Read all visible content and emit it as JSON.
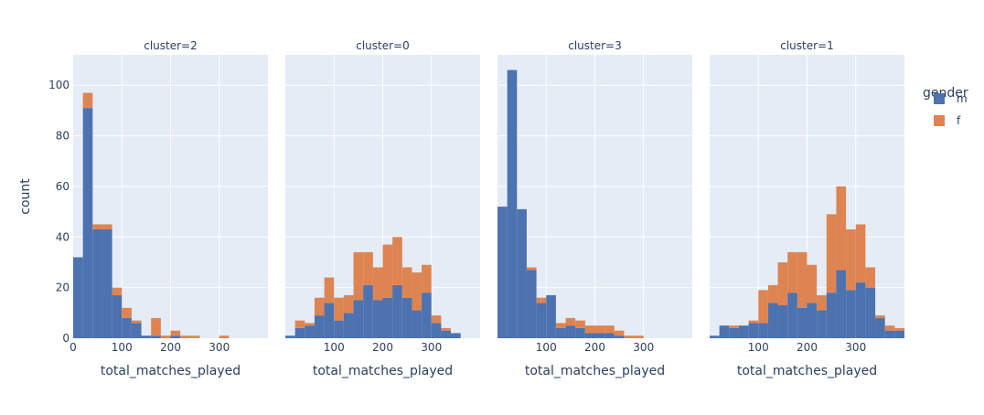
{
  "chart_data": {
    "type": "bar",
    "layout": "faceted stacked histogram",
    "y_axis_title": "count",
    "ylim": [
      0,
      112
    ],
    "y_ticks": [
      0,
      20,
      40,
      60,
      80,
      100
    ],
    "x_axis_title": "total_matches_played",
    "legend": {
      "title": "gender",
      "position": "top-right",
      "entries": [
        {
          "name": "m",
          "color": "#4c72b0"
        },
        {
          "name": "f",
          "color": "#dd8452"
        }
      ]
    },
    "grid": true,
    "background_color": "#e5ecf6",
    "facets": [
      {
        "title": "cluster=2",
        "xlim": [
          0,
          400
        ],
        "x_ticks": [
          0,
          100,
          200,
          300
        ],
        "bin_width": 20,
        "bins_start": [
          0,
          20,
          40,
          60,
          80,
          100,
          120,
          140,
          160,
          180,
          200,
          220,
          240,
          260,
          280,
          300,
          320,
          340,
          360,
          380
        ],
        "series": [
          {
            "name": "m",
            "values": [
              32,
              91,
              43,
              43,
              17,
              8,
              6,
              1,
              1,
              0,
              1,
              0,
              0,
              0,
              0,
              0,
              0,
              0,
              0,
              0
            ]
          },
          {
            "name": "f",
            "values": [
              0,
              6,
              2,
              2,
              3,
              4,
              1,
              0,
              7,
              1,
              2,
              1,
              1,
              0,
              0,
              1,
              0,
              0,
              0,
              0
            ]
          }
        ]
      },
      {
        "title": "cluster=0",
        "xlim": [
          0,
          400
        ],
        "x_ticks": [
          100,
          200,
          300
        ],
        "bin_width": 20,
        "bins_start": [
          0,
          20,
          40,
          60,
          80,
          100,
          120,
          140,
          160,
          180,
          200,
          220,
          240,
          260,
          280,
          300,
          320,
          340,
          360,
          380
        ],
        "series": [
          {
            "name": "m",
            "values": [
              1,
              4,
              5,
              9,
              14,
              7,
              10,
              15,
              21,
              15,
              16,
              21,
              16,
              11,
              18,
              6,
              3,
              2,
              0,
              0
            ]
          },
          {
            "name": "f",
            "values": [
              0,
              3,
              1,
              7,
              10,
              9,
              7,
              19,
              13,
              13,
              21,
              19,
              12,
              15,
              11,
              3,
              1,
              0,
              0,
              0
            ]
          }
        ]
      },
      {
        "title": "cluster=3",
        "xlim": [
          0,
          400
        ],
        "x_ticks": [
          100,
          200,
          300
        ],
        "bin_width": 20,
        "bins_start": [
          0,
          20,
          40,
          60,
          80,
          100,
          120,
          140,
          160,
          180,
          200,
          220,
          240,
          260,
          280,
          300,
          320,
          340,
          360,
          380
        ],
        "series": [
          {
            "name": "m",
            "values": [
              52,
              106,
              51,
              27,
              14,
              17,
              4,
              5,
              4,
              2,
              2,
              2,
              1,
              0,
              0,
              0,
              0,
              0,
              0,
              0
            ]
          },
          {
            "name": "f",
            "values": [
              0,
              0,
              0,
              1,
              2,
              0,
              2,
              3,
              3,
              3,
              3,
              3,
              2,
              1,
              1,
              0,
              0,
              0,
              0,
              0
            ]
          }
        ]
      },
      {
        "title": "cluster=1",
        "xlim": [
          0,
          400
        ],
        "x_ticks": [
          100,
          200,
          300
        ],
        "bin_width": 20,
        "bins_start": [
          0,
          20,
          40,
          60,
          80,
          100,
          120,
          140,
          160,
          180,
          200,
          220,
          240,
          260,
          280,
          300,
          320,
          340,
          360,
          380
        ],
        "series": [
          {
            "name": "m",
            "values": [
              1,
              5,
              4,
              5,
              6,
              6,
              14,
              13,
              18,
              12,
              14,
              11,
              18,
              27,
              19,
              22,
              20,
              8,
              3,
              3
            ]
          },
          {
            "name": "f",
            "values": [
              0,
              0,
              1,
              0,
              1,
              13,
              7,
              17,
              16,
              22,
              15,
              6,
              31,
              33,
              24,
              23,
              8,
              1,
              2,
              1
            ]
          }
        ]
      }
    ]
  }
}
